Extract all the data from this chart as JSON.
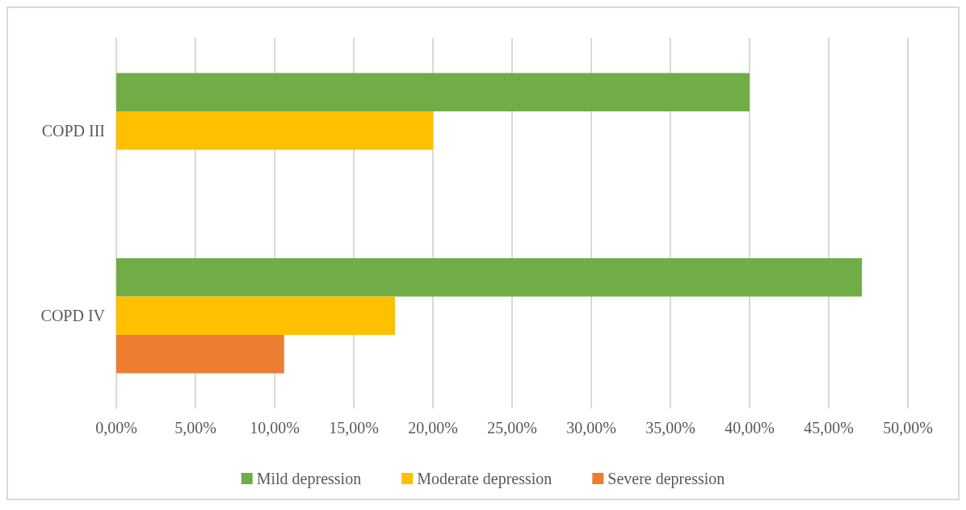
{
  "chart_data": {
    "type": "bar",
    "orientation": "horizontal",
    "categories": [
      "COPD III",
      "COPD IV"
    ],
    "series": [
      {
        "name": "Mild depression",
        "color": "#70ad47",
        "values": [
          40.0,
          47.1
        ]
      },
      {
        "name": "Moderate depression",
        "color": "#ffc000",
        "values": [
          20.0,
          17.6
        ]
      },
      {
        "name": "Severe depression",
        "color": "#ed7d31",
        "values": [
          0,
          10.6
        ]
      }
    ],
    "xlim": [
      0,
      50
    ],
    "xticks": [
      {
        "value": 0,
        "label": "0,00%"
      },
      {
        "value": 5,
        "label": "5,00%"
      },
      {
        "value": 10,
        "label": "10,00%"
      },
      {
        "value": 15,
        "label": "15,00%"
      },
      {
        "value": 20,
        "label": "20,00%"
      },
      {
        "value": 25,
        "label": "25,00%"
      },
      {
        "value": 30,
        "label": "30,00%"
      },
      {
        "value": 35,
        "label": "35,00%"
      },
      {
        "value": 40,
        "label": "40,00%"
      },
      {
        "value": 45,
        "label": "45,00%"
      },
      {
        "value": 50,
        "label": "50,00%"
      }
    ],
    "grid": "x",
    "legend": "bottom"
  }
}
